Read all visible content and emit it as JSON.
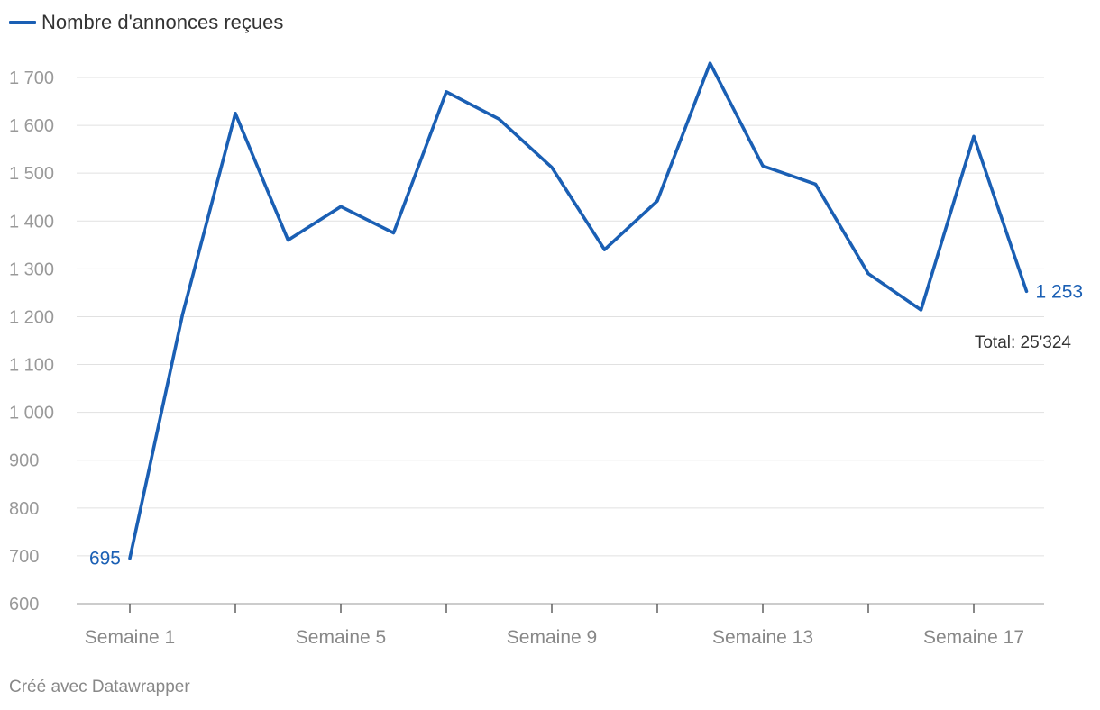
{
  "chart_data": {
    "type": "line",
    "title": "",
    "xlabel": "",
    "ylabel": "",
    "x": [
      1,
      2,
      3,
      4,
      5,
      6,
      7,
      8,
      9,
      10,
      11,
      12,
      13,
      14,
      15,
      16,
      17,
      18
    ],
    "x_tick_values": [
      1,
      5,
      9,
      13,
      17
    ],
    "x_tick_labels": [
      "Semaine 1",
      "Semaine 5",
      "Semaine 9",
      "Semaine 13",
      "Semaine 17"
    ],
    "series": [
      {
        "name": "Nombre d'annonces reçues",
        "color": "#1a5fb4",
        "values": [
          695,
          1205,
          1625,
          1360,
          1430,
          1375,
          1670,
          1613,
          1512,
          1340,
          1442,
          1730,
          1515,
          1477,
          1290,
          1214,
          1577,
          1253
        ]
      }
    ],
    "ylim": [
      600,
      1700
    ],
    "y_ticks": [
      600,
      700,
      800,
      900,
      1000,
      1100,
      1200,
      1300,
      1400,
      1500,
      1600,
      1700
    ],
    "y_tick_labels": [
      "600",
      "700",
      "800",
      "900",
      "1 000",
      "1 100",
      "1 200",
      "1 300",
      "1 400",
      "1 500",
      "1 600",
      "1 700"
    ],
    "grid": true,
    "legend_position": "top-left",
    "start_label": "695",
    "end_label": "1 253",
    "annotation": "Total: 25'324"
  },
  "footer": "Créé avec Datawrapper",
  "colors": {
    "line": "#1a5fb4",
    "grid": "#e1e1e1",
    "axis_text": "#999999",
    "annotation_text": "#333333"
  }
}
